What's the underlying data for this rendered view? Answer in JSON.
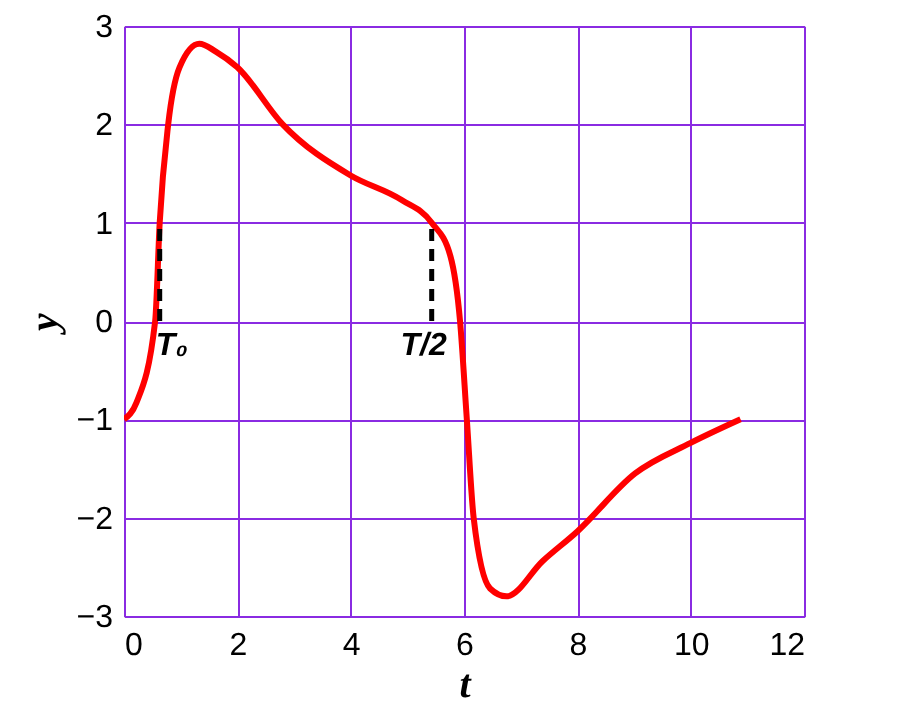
{
  "chart_data": {
    "type": "line",
    "xlabel": "t",
    "ylabel": "y",
    "xlim": [
      0,
      12
    ],
    "xticks": [
      0,
      2,
      4,
      6,
      8,
      10,
      12
    ],
    "ylim": [
      -3,
      3
    ],
    "yticks": [
      -3,
      -2,
      -1,
      0,
      1,
      2,
      3
    ],
    "grid": true,
    "marker": "none",
    "line_style": "solid",
    "series": [
      {
        "color": "#ff0000",
        "x": [
          0,
          0.22,
          0.55,
          0.63,
          0.78,
          0.98,
          1.33,
          1.62,
          2,
          2.8,
          4,
          4.9,
          5.43,
          5.76,
          5.93,
          6.05,
          6.17,
          6.46,
          6.75,
          7.39,
          8,
          9.02,
          10,
          10.88
        ],
        "values": [
          -1,
          -0.83,
          0,
          1,
          2,
          2.58,
          2.82,
          2.74,
          2.58,
          2,
          1.48,
          1.23,
          1,
          0.66,
          0,
          -1,
          -2,
          -2.72,
          -2.8,
          -2.44,
          -2.14,
          -1.55,
          -1.24,
          -1
        ]
      },
      {
        "color": "#000000",
        "line_style": "dashed",
        "x": [
          0.63,
          0.63
        ],
        "values": [
          0,
          1
        ]
      },
      {
        "color": "#000000",
        "line_style": "dashed",
        "x": [
          5.43,
          5.43
        ],
        "values": [
          0,
          1
        ]
      }
    ],
    "annotations": [
      {
        "text": "T₀",
        "x": 0.63,
        "y": 0
      },
      {
        "text": "T/2",
        "x": 5.43,
        "y": 0
      }
    ]
  }
}
